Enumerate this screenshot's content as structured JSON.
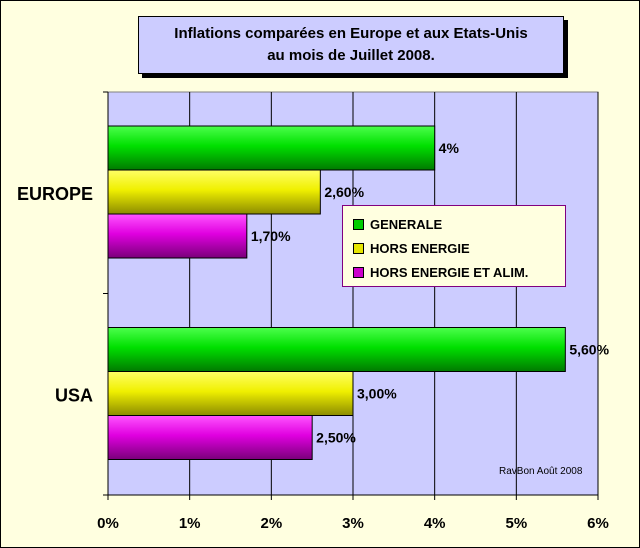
{
  "chart_data": {
    "type": "bar",
    "orientation": "horizontal",
    "title": [
      "Inflations comparées en Europe et aux Etats-Unis",
      "au mois de Juillet 2008."
    ],
    "categories": [
      "EUROPE",
      "USA"
    ],
    "series": [
      {
        "name": "GENERALE",
        "color": "#00CC00",
        "values": [
          4.0,
          5.6
        ],
        "labels": [
          "4%",
          "5,60%"
        ]
      },
      {
        "name": "HORS ENERGIE",
        "color": "#E6E600",
        "values": [
          2.6,
          3.0
        ],
        "labels": [
          "2,60%",
          "3,00%"
        ]
      },
      {
        "name": "HORS ENERGIE ET ALIM.",
        "color": "#CC00CC",
        "values": [
          1.7,
          2.5
        ],
        "labels": [
          "1,70%",
          "2,50%"
        ]
      }
    ],
    "xlim": [
      0,
      6
    ],
    "xticks": [
      "0%",
      "1%",
      "2%",
      "3%",
      "4%",
      "5%",
      "6%"
    ],
    "grid": true,
    "legend_position": "right",
    "plot_background": "#CCCCFF",
    "credit": "RavBon Août 2008"
  }
}
